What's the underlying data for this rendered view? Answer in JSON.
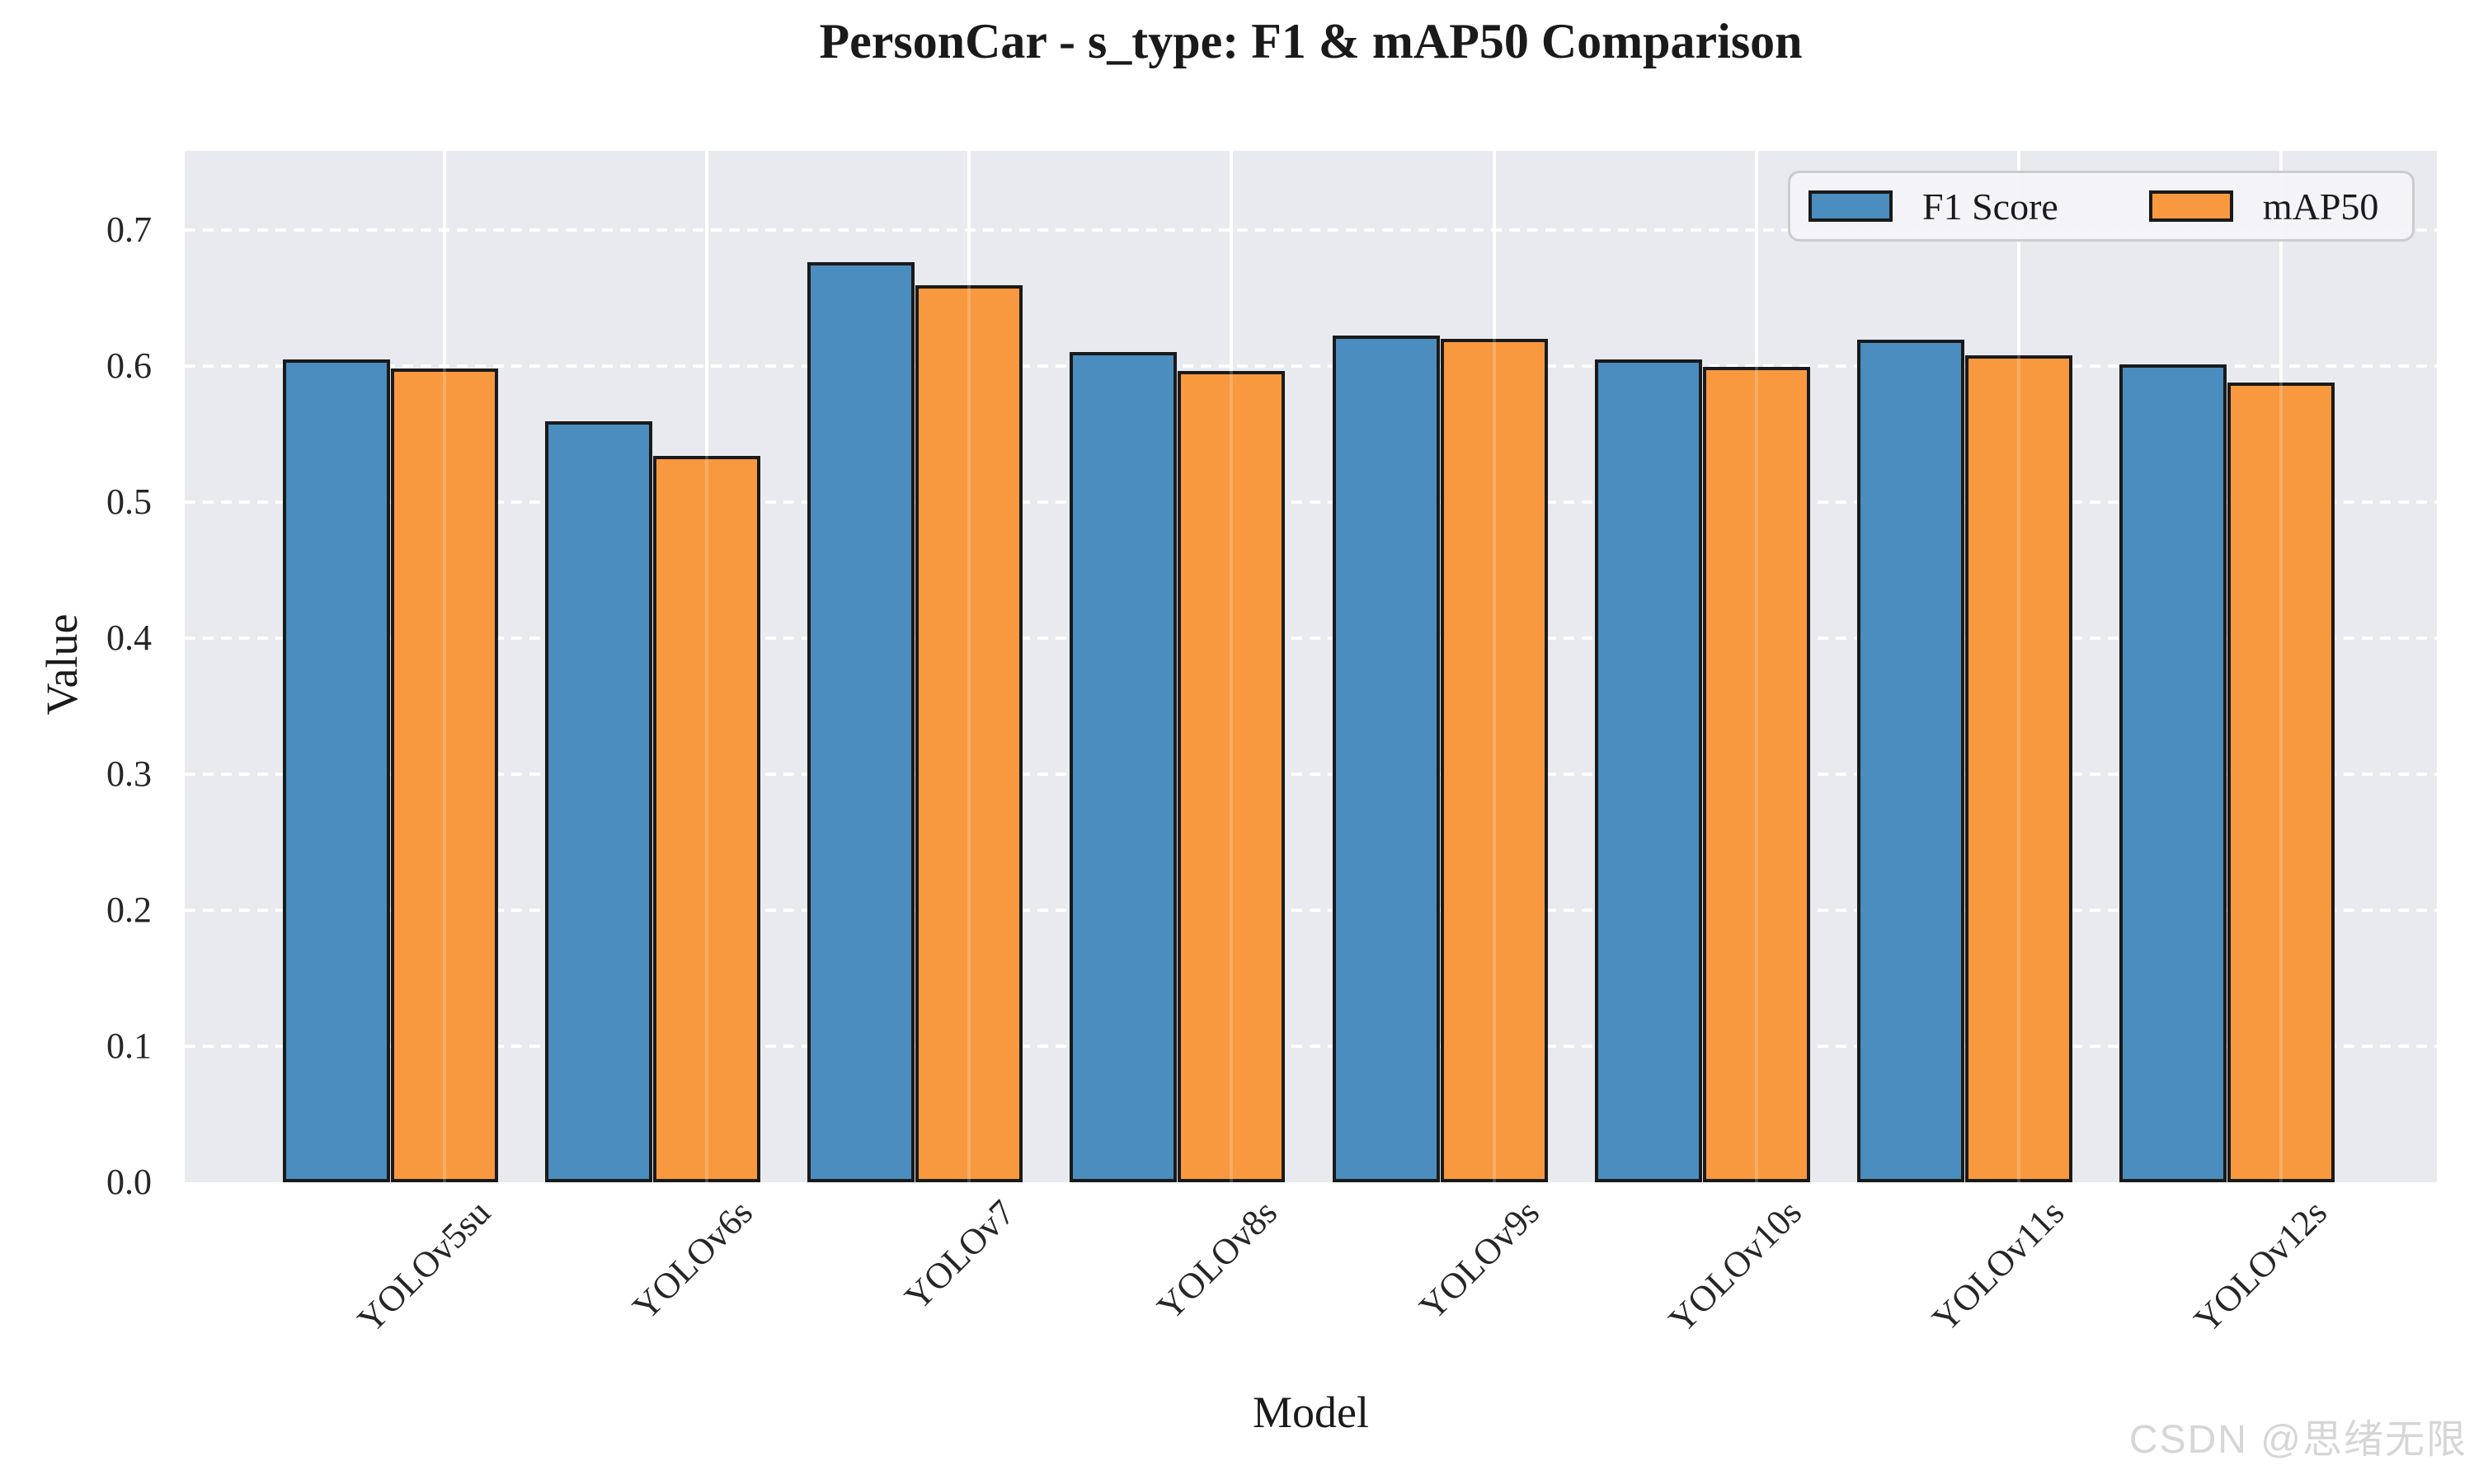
{
  "chart_data": {
    "type": "bar",
    "title": "PersonCar - s_type: F1 & mAP50 Comparison",
    "xlabel": "Model",
    "ylabel": "Value",
    "categories": [
      "YOLOv5su",
      "YOLOv6s",
      "YOLOv7",
      "YOLOv8s",
      "YOLOv9s",
      "YOLOv10s",
      "YOLOv11s",
      "YOLOv12s"
    ],
    "series": [
      {
        "name": "F1 Score",
        "color": "#4a8dbe",
        "edge_color": "#1a1a1a",
        "values": [
          0.605,
          0.559,
          0.676,
          0.61,
          0.622,
          0.605,
          0.619,
          0.601
        ]
      },
      {
        "name": "mAP50",
        "color": "#f8993f",
        "edge_color": "#1a1a1a",
        "values": [
          0.598,
          0.534,
          0.659,
          0.596,
          0.62,
          0.599,
          0.608,
          0.588
        ]
      }
    ],
    "ylim": [
      0,
      0.758
    ],
    "yticks": [
      "0.0",
      "0.1",
      "0.2",
      "0.3",
      "0.4",
      "0.5",
      "0.6",
      "0.7"
    ],
    "grid": {
      "horizontal_style": "dashed",
      "vertical_style": "solid",
      "grid_color": "#ffffff",
      "plot_background": "#e9e9f0"
    },
    "legend": {
      "position": "upper right",
      "entries": [
        "F1 Score",
        "mAP50"
      ]
    }
  },
  "watermark": {
    "text": "CSDN @思绪无限",
    "color": "#d6d6d6"
  }
}
